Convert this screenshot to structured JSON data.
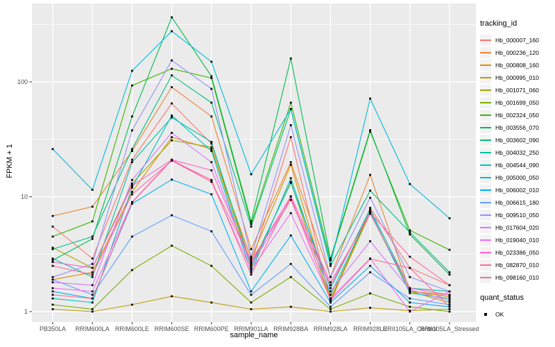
{
  "figure": {
    "background": "#FFFFFF",
    "panel_background": "#EBEBEB",
    "grid_color": "#FFFFFF",
    "axis_text_color": "#4D4D4D",
    "tick_mark_color": "#333333"
  },
  "axes": {
    "x_title": "sample_name",
    "y_title": "FPKM + 1",
    "y_tick_labels": [
      "1",
      "10",
      "100"
    ]
  },
  "legend": {
    "tracking_title": "tracking_id",
    "quant_title": "quant_status",
    "quant_items": [
      {
        "label": "OK",
        "marker": "black-square",
        "color": "#000000"
      }
    ]
  },
  "chart_data": {
    "type": "line",
    "title": "",
    "xlabel": "sample_name",
    "ylabel": "FPKM + 1",
    "y_scale": "log10",
    "ylim": [
      0.82,
      480
    ],
    "y_ticks": [
      1,
      10,
      100
    ],
    "y_minor_ticks": [
      3.1623,
      31.623,
      316.23
    ],
    "grid": true,
    "legend_position": "right",
    "marker": {
      "shape": "square",
      "color": "#000000",
      "size": 2.8
    },
    "x_categories": [
      "PB350LA",
      "RRIM600LA",
      "RRIM600LE",
      "RRIM600SE",
      "RRIM600PE",
      "RRIM901LA",
      "RRIM928BA",
      "RRIM928LA",
      "RRIM928LE",
      "RRII105LA_Control",
      "RRII105LA_Stressed"
    ],
    "series": [
      {
        "name": "Hb_000007_160",
        "color": "#F8766D",
        "values": [
          5.5,
          2.9,
          21,
          65,
          29,
          2.6,
          33,
          1.2,
          8.0,
          2.4,
          1.7
        ]
      },
      {
        "name": "Hb_000236_120",
        "color": "#EA8331",
        "values": [
          6.8,
          8.2,
          25,
          90,
          50,
          3.5,
          20,
          2.0,
          15.5,
          1.5,
          1.4
        ]
      },
      {
        "name": "Hb_000808_160",
        "color": "#D89000",
        "values": [
          1.9,
          2.2,
          11,
          33,
          26,
          2.9,
          19,
          1.3,
          7.4,
          1.5,
          1.35
        ]
      },
      {
        "name": "Hb_000995_010",
        "color": "#C09B00",
        "values": [
          1.05,
          1.0,
          1.15,
          1.36,
          1.2,
          1.05,
          1.1,
          1.0,
          1.08,
          1.02,
          1.05
        ]
      },
      {
        "name": "Hb_001071_060",
        "color": "#A3A500",
        "values": [
          3.6,
          2.4,
          13,
          31,
          27,
          2.4,
          13.5,
          1.25,
          7.2,
          1.5,
          1.2
        ]
      },
      {
        "name": "Hb_001699_050",
        "color": "#7CAE00",
        "values": [
          1.15,
          1.05,
          2.3,
          3.75,
          2.5,
          1.2,
          2.0,
          1.05,
          1.44,
          1.1,
          1.0
        ]
      },
      {
        "name": "Hb_002324_050",
        "color": "#39B600",
        "values": [
          4.5,
          6.1,
          93,
          130,
          108,
          5.8,
          66,
          2.8,
          37,
          5.1,
          3.45
        ]
      },
      {
        "name": "Hb_003556_070",
        "color": "#00BB4E",
        "values": [
          2.8,
          4.3,
          50,
          365,
          112,
          6.1,
          160,
          2.9,
          38,
          4.7,
          2.1
        ]
      },
      {
        "name": "Hb_003602_090",
        "color": "#00BF7D",
        "values": [
          3.5,
          4.5,
          26,
          114,
          66,
          5.5,
          58,
          2.5,
          11.3,
          4.9,
          2.2
        ]
      },
      {
        "name": "Hb_004032_250",
        "color": "#00C1A3",
        "values": [
          2.9,
          2.0,
          20,
          49,
          30,
          2.5,
          13.2,
          1.6,
          7.8,
          1.6,
          1.5
        ]
      },
      {
        "name": "Hb_004544_090",
        "color": "#00BFC4",
        "values": [
          1.3,
          1.2,
          12,
          51,
          25,
          2.2,
          14.5,
          1.4,
          7.5,
          1.45,
          1.3
        ]
      },
      {
        "name": "Hb_005000_050",
        "color": "#00BBDA",
        "values": [
          26,
          11.5,
          125,
          276,
          150,
          15.7,
          58,
          2.6,
          71.6,
          12.9,
          6.5
        ]
      },
      {
        "name": "Hb_006002_010",
        "color": "#00B0F6",
        "values": [
          1.5,
          1.3,
          8.7,
          14.1,
          10.5,
          1.5,
          4.6,
          1.2,
          2.5,
          1.2,
          1.1
        ]
      },
      {
        "name": "Hb_006615_180",
        "color": "#619CFF",
        "values": [
          1.9,
          1.4,
          4.5,
          6.9,
          5.0,
          1.4,
          2.6,
          1.1,
          2.2,
          1.3,
          1.15
        ]
      },
      {
        "name": "Hb_009510_050",
        "color": "#9590FF",
        "values": [
          2.0,
          2.6,
          37.8,
          154,
          87,
          3.0,
          42,
          2.0,
          9.8,
          2.0,
          1.5
        ]
      },
      {
        "name": "Hb_017604_020",
        "color": "#D277FF",
        "values": [
          1.8,
          1.7,
          14,
          36,
          20,
          2.5,
          9.4,
          1.5,
          4.1,
          1.55,
          1.25
        ]
      },
      {
        "name": "Hb_019040_010",
        "color": "#EE6EF4",
        "values": [
          1.6,
          1.5,
          9.0,
          21,
          13.5,
          2.3,
          7.2,
          1.3,
          2.9,
          1.0,
          1.5
        ]
      },
      {
        "name": "Hb_023386_050",
        "color": "#FD61D1",
        "values": [
          2.7,
          2.4,
          12.5,
          21,
          17,
          2.7,
          10.1,
          1.8,
          7.1,
          1.6,
          1.4
        ]
      },
      {
        "name": "Hb_082870_010",
        "color": "#FF689F",
        "values": [
          2.5,
          2.1,
          10.5,
          20.6,
          13.5,
          2.8,
          9.4,
          1.7,
          7.3,
          3.0,
          1.7
        ]
      },
      {
        "name": "Hb_098160_010",
        "color": "#FF6B96",
        "values": [
          1.4,
          1.3,
          8.9,
          20.8,
          14,
          2.1,
          10,
          1.25,
          2.88,
          2.4,
          1.1
        ]
      }
    ]
  }
}
